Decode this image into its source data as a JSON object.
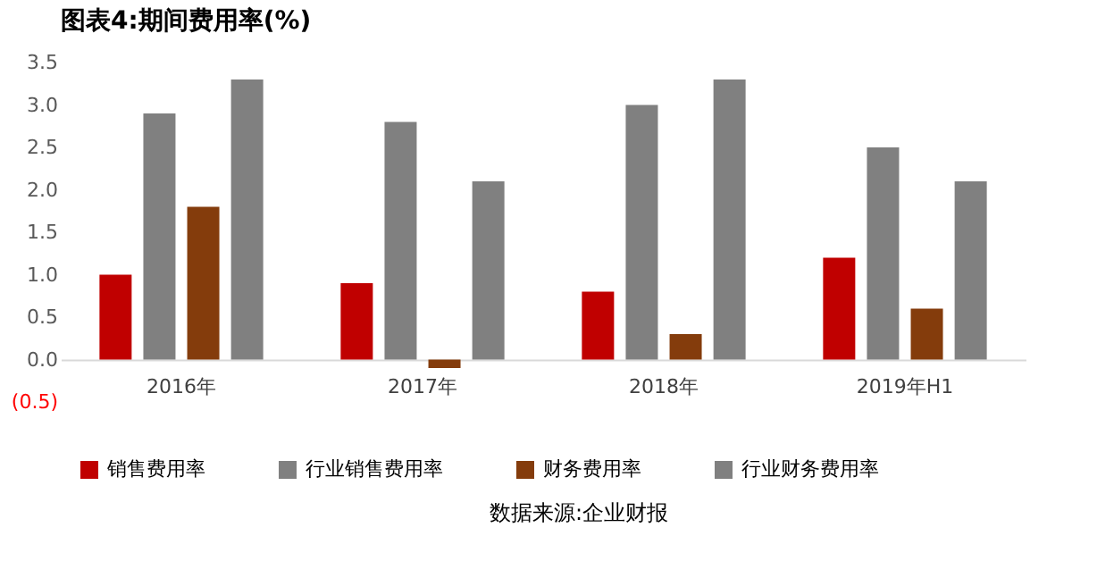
{
  "chart_data": {
    "type": "bar",
    "title": "图表4:期间费用率(%)",
    "categories": [
      "2016年",
      "2017年",
      "2018年",
      "2019年H1"
    ],
    "series": [
      {
        "name": "销售费用率",
        "color": "#c00000",
        "values": [
          1.0,
          0.9,
          0.8,
          1.2
        ]
      },
      {
        "name": "行业销售费用率",
        "color": "#808080",
        "values": [
          2.9,
          2.8,
          3.0,
          2.5
        ]
      },
      {
        "name": "财务费用率",
        "color": "#843c0c",
        "values": [
          1.8,
          -0.1,
          0.3,
          0.6
        ]
      },
      {
        "name": "行业财务费用率",
        "color": "#808080",
        "values": [
          3.3,
          2.1,
          3.3,
          2.1
        ]
      }
    ],
    "ylim": [
      -0.5,
      3.5
    ],
    "yticks": [
      {
        "value": -0.5,
        "label": "(0.5)"
      },
      {
        "value": 0,
        "label": "0.0"
      },
      {
        "value": 0.5,
        "label": "0.5"
      },
      {
        "value": 1,
        "label": "1.0"
      },
      {
        "value": 1.5,
        "label": "1.5"
      },
      {
        "value": 2,
        "label": "2.0"
      },
      {
        "value": 2.5,
        "label": "2.5"
      },
      {
        "value": 3,
        "label": "3.0"
      },
      {
        "value": 3.5,
        "label": "3.5"
      }
    ],
    "grid": false,
    "legend": "bottom",
    "annotations": [
      "数据来源:企业财报"
    ]
  }
}
